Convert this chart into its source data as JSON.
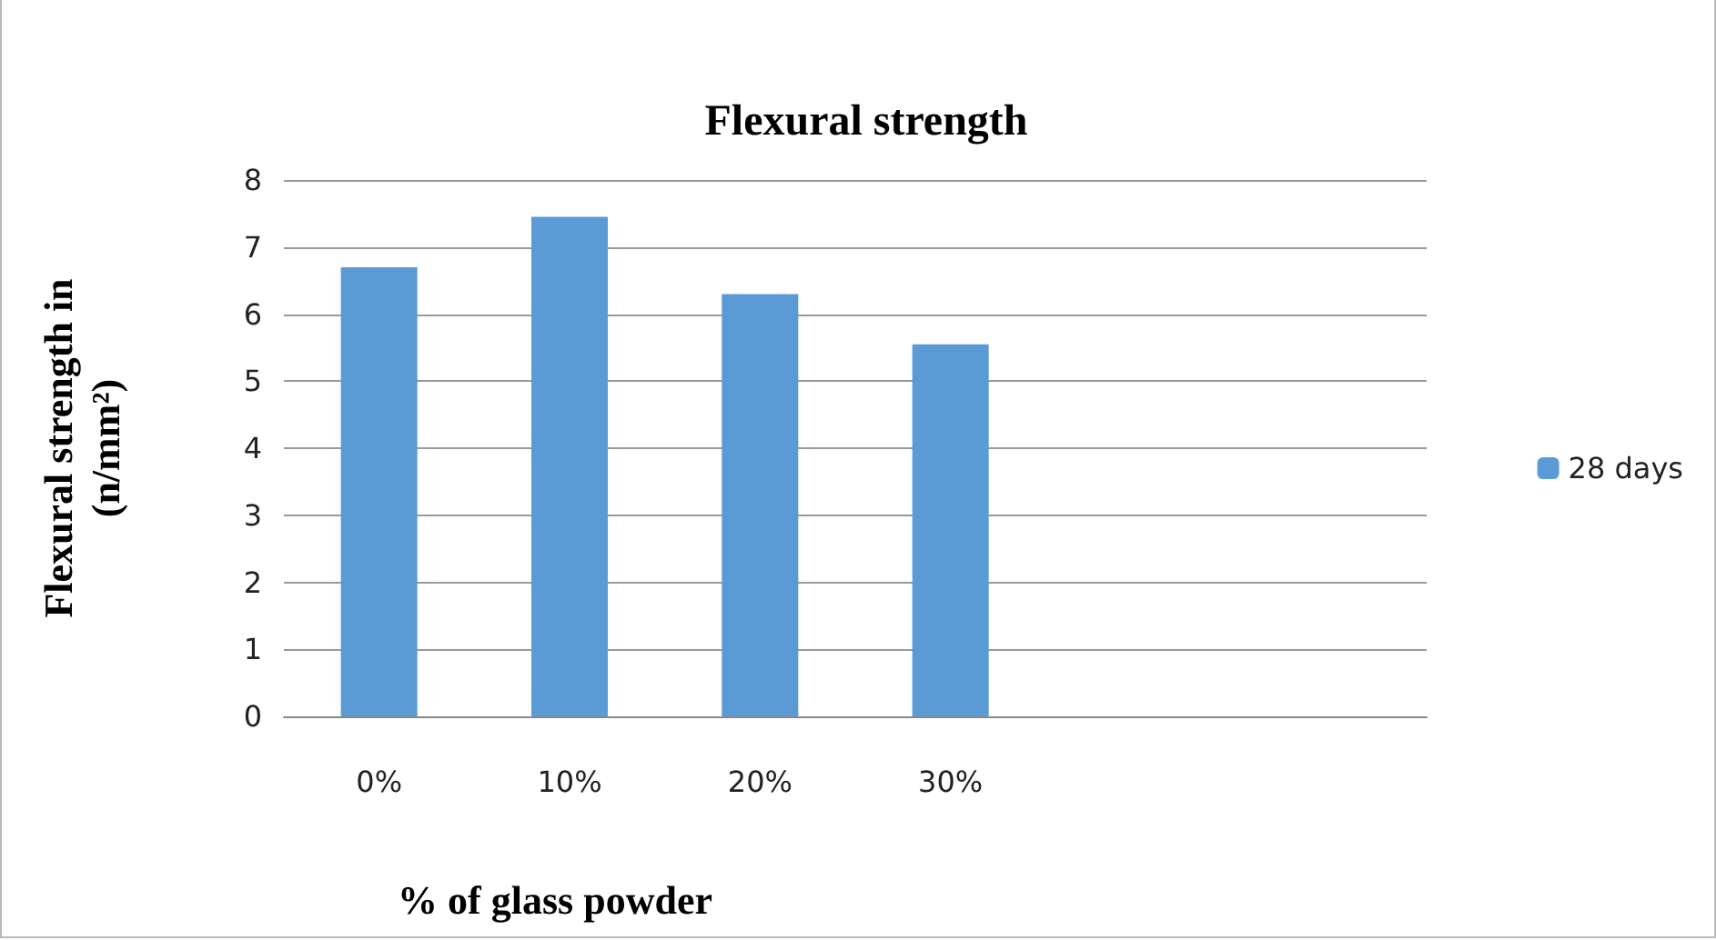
{
  "chart_data": {
    "type": "bar",
    "title": "Flexural strength",
    "xlabel": "% of glass powder",
    "ylabel": "Flexural strength in\n(n/mm²)",
    "categories": [
      "0%",
      "10%",
      "20%",
      "30%",
      null,
      null
    ],
    "series": [
      {
        "name": "28 days",
        "color": "#5b9bd5",
        "values": [
          6.7,
          7.45,
          6.3,
          5.55,
          null,
          null
        ]
      }
    ],
    "ylim": [
      0,
      8
    ],
    "yticks": [
      0,
      1,
      2,
      3,
      4,
      5,
      6,
      7,
      8
    ],
    "grid": "y",
    "legend": "right"
  }
}
